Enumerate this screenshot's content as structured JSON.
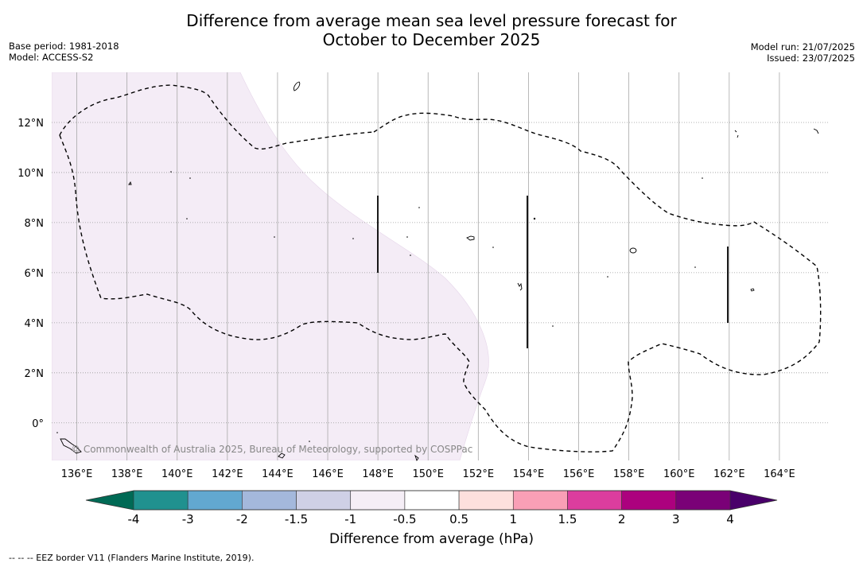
{
  "title": {
    "line1": "Difference from average mean sea level pressure forecast for",
    "line2": "October to December 2025"
  },
  "meta_left": {
    "base_period": "Base period: 1981-2018",
    "model": "Model: ACCESS-S2"
  },
  "meta_right": {
    "model_run": "Model run: 21/07/2025",
    "issued": "Issued: 23/07/2025"
  },
  "map": {
    "lon_range": [
      135,
      166
    ],
    "lat_range": [
      -1.5,
      14
    ],
    "lon_ticks": [
      "136°E",
      "138°E",
      "140°E",
      "142°E",
      "144°E",
      "146°E",
      "148°E",
      "150°E",
      "152°E",
      "154°E",
      "156°E",
      "158°E",
      "160°E",
      "162°E",
      "164°E"
    ],
    "lon_values": [
      136,
      138,
      140,
      142,
      144,
      146,
      148,
      150,
      152,
      154,
      156,
      158,
      160,
      162,
      164
    ],
    "lat_ticks": [
      "12°N",
      "10°N",
      "8°N",
      "6°N",
      "4°N",
      "2°N",
      "0°"
    ],
    "lat_values": [
      12,
      10,
      8,
      6,
      4,
      2,
      0
    ],
    "shaded_region": {
      "class": "-1 to -0.5 hPa",
      "color": "#f4ecf6"
    },
    "background_class": "-0.5 to 0.5 hPa"
  },
  "copyright": "© Commonwealth of Australia 2025, Bureau of Meteorology, supported by COSPPac",
  "colorbar": {
    "label": "Difference from average (hPa)",
    "tick_labels": [
      "-4",
      "-3",
      "-2",
      "-1.5",
      "-1",
      "-0.5",
      "0.5",
      "1",
      "1.5",
      "2",
      "3",
      "4"
    ],
    "colors": [
      "#20918f",
      "#62a8d0",
      "#a4b8dc",
      "#cfd0e6",
      "#f5eef6",
      "#ffffff",
      "#fde0dd",
      "#f99fb6",
      "#dc3d9e",
      "#ac017e",
      "#7a0177"
    ],
    "extend_low_color": "#006a55",
    "extend_high_color": "#49006a"
  },
  "footnote": "--  --  -- EEZ border V11 (Flanders Marine Institute, 2019)."
}
